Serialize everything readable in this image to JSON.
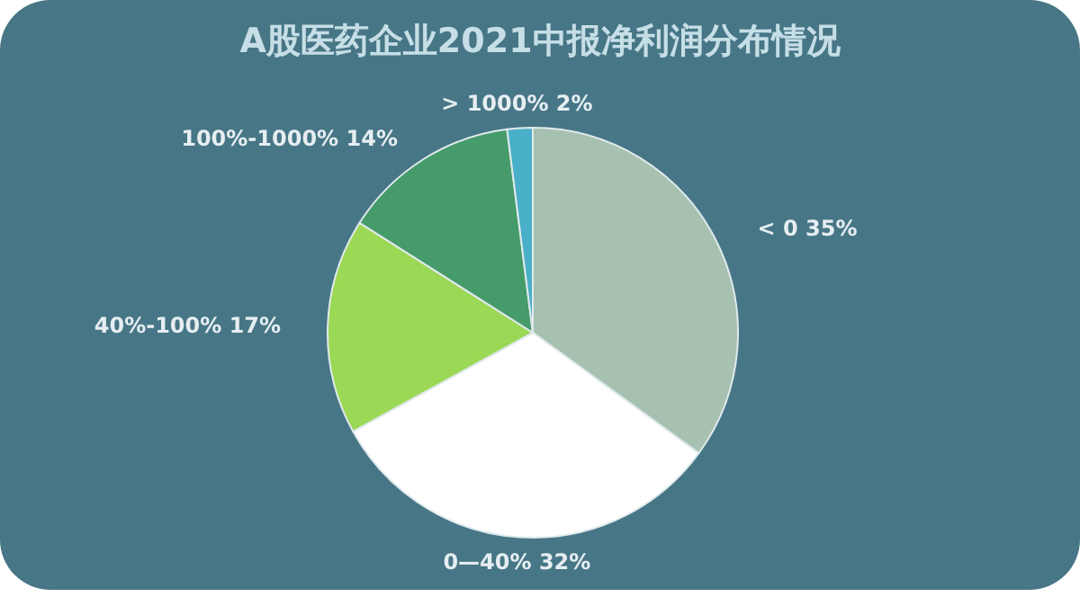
{
  "chart_data": {
    "type": "pie",
    "title": "A股医药企业2021中报净利润分布情况",
    "categories": [
      "< 0",
      "0—40%",
      "40%-100%",
      "100%-1000%",
      "> 1000%"
    ],
    "values": [
      35,
      32,
      17,
      14,
      2
    ],
    "value_labels": [
      "35%",
      "32%",
      "17%",
      "14%",
      "2%"
    ],
    "colors": [
      "#a6c1b0",
      "#ffffff",
      "#9bd855",
      "#459b6a",
      "#4aafc8"
    ]
  }
}
